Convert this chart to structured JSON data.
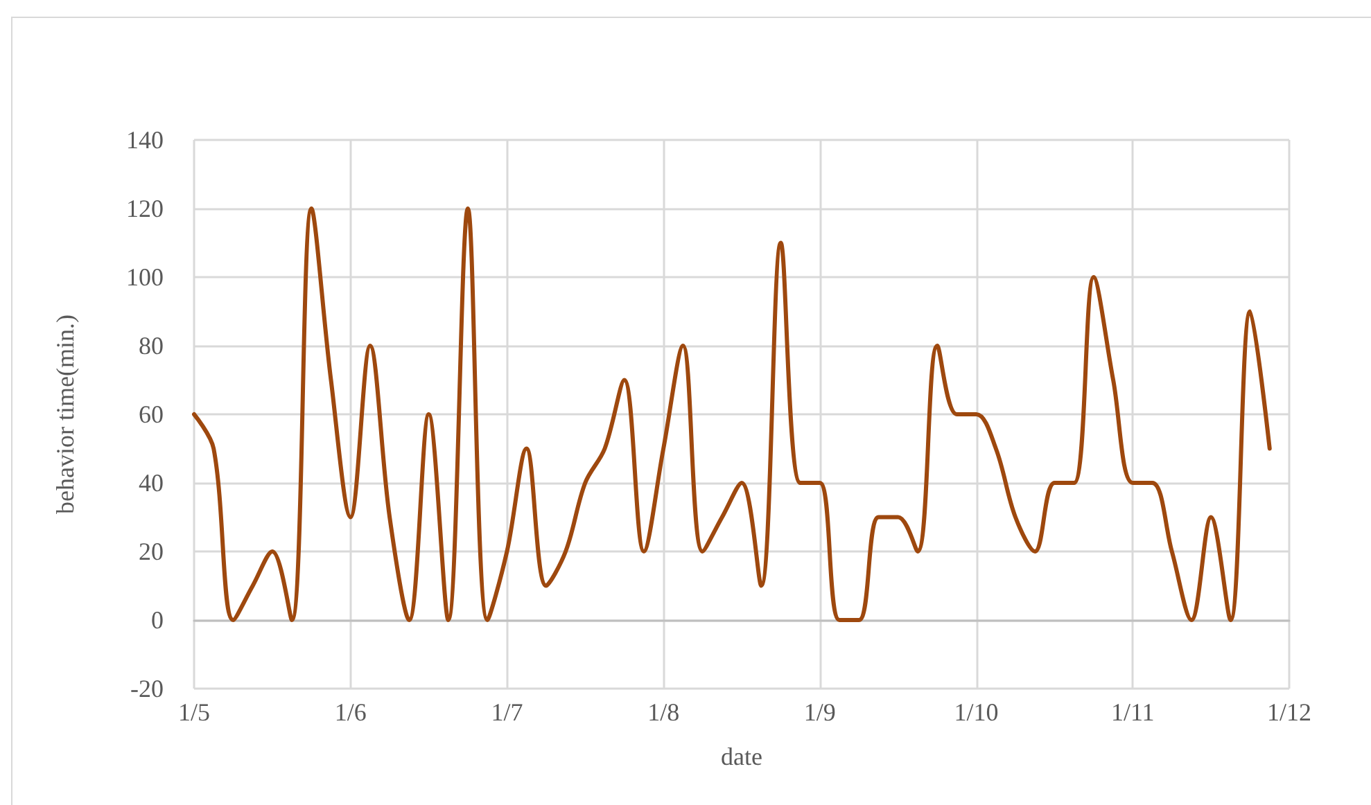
{
  "chart_data": {
    "type": "line",
    "xlabel": "date",
    "ylabel": "behavior time(min.)",
    "x": [
      "--01-05T00:00",
      "--01-05T03:00",
      "--01-05T06:00",
      "--01-05T09:00",
      "--01-05T12:00",
      "--01-05T15:00",
      "--01-05T18:00",
      "--01-05T21:00",
      "--01-06T00:00",
      "--01-06T03:00",
      "--01-06T06:00",
      "--01-06T09:00",
      "--01-06T12:00",
      "--01-06T15:00",
      "--01-06T18:00",
      "--01-06T21:00",
      "--01-07T00:00",
      "--01-07T03:00",
      "--01-07T06:00",
      "--01-07T09:00",
      "--01-07T12:00",
      "--01-07T15:00",
      "--01-07T18:00",
      "--01-07T21:00",
      "--01-08T00:00",
      "--01-08T03:00",
      "--01-08T06:00",
      "--01-08T09:00",
      "--01-08T12:00",
      "--01-08T15:00",
      "--01-08T18:00",
      "--01-08T21:00",
      "--01-09T00:00",
      "--01-09T03:00",
      "--01-09T06:00",
      "--01-09T09:00",
      "--01-09T12:00",
      "--01-09T15:00",
      "--01-09T18:00",
      "--01-09T21:00",
      "--01-10T00:00",
      "--01-10T03:00",
      "--01-10T06:00",
      "--01-10T09:00",
      "--01-10T12:00",
      "--01-10T15:00",
      "--01-10T18:00",
      "--01-10T21:00",
      "--01-11T00:00",
      "--01-11T03:00",
      "--01-11T06:00",
      "--01-11T09:00",
      "--01-11T12:00",
      "--01-11T15:00",
      "--01-11T18:00",
      "--01-11T21:00"
    ],
    "series": [
      {
        "color": "#9e480e",
        "values": [
          60,
          50,
          0,
          10,
          20,
          0,
          120,
          70,
          30,
          80,
          30,
          0,
          60,
          0,
          120,
          0,
          20,
          50,
          10,
          20,
          40,
          50,
          70,
          20,
          50,
          80,
          20,
          30,
          40,
          10,
          110,
          40,
          40,
          0,
          0,
          30,
          30,
          20,
          80,
          60,
          60,
          50,
          30,
          20,
          40,
          40,
          100,
          70,
          40,
          40,
          20,
          0,
          30,
          0,
          90,
          50
        ]
      }
    ],
    "xlim": [
      "--01-05",
      "--01-12"
    ],
    "xticks": [
      {
        "value": "--01-05",
        "label": "1/5"
      },
      {
        "value": "--01-06",
        "label": "1/6"
      },
      {
        "value": "--01-07",
        "label": "1/7"
      },
      {
        "value": "--01-08",
        "label": "1/8"
      },
      {
        "value": "--01-09",
        "label": "1/9"
      },
      {
        "value": "--01-10",
        "label": "1/10"
      },
      {
        "value": "--01-11",
        "label": "1/11"
      },
      {
        "value": "--01-12",
        "label": "1/12"
      }
    ],
    "ylim": [
      -20,
      140
    ],
    "yticks": [
      -20,
      0,
      20,
      40,
      60,
      80,
      100,
      120,
      140
    ],
    "grid": true,
    "marker": "none",
    "line_style": "solid"
  }
}
